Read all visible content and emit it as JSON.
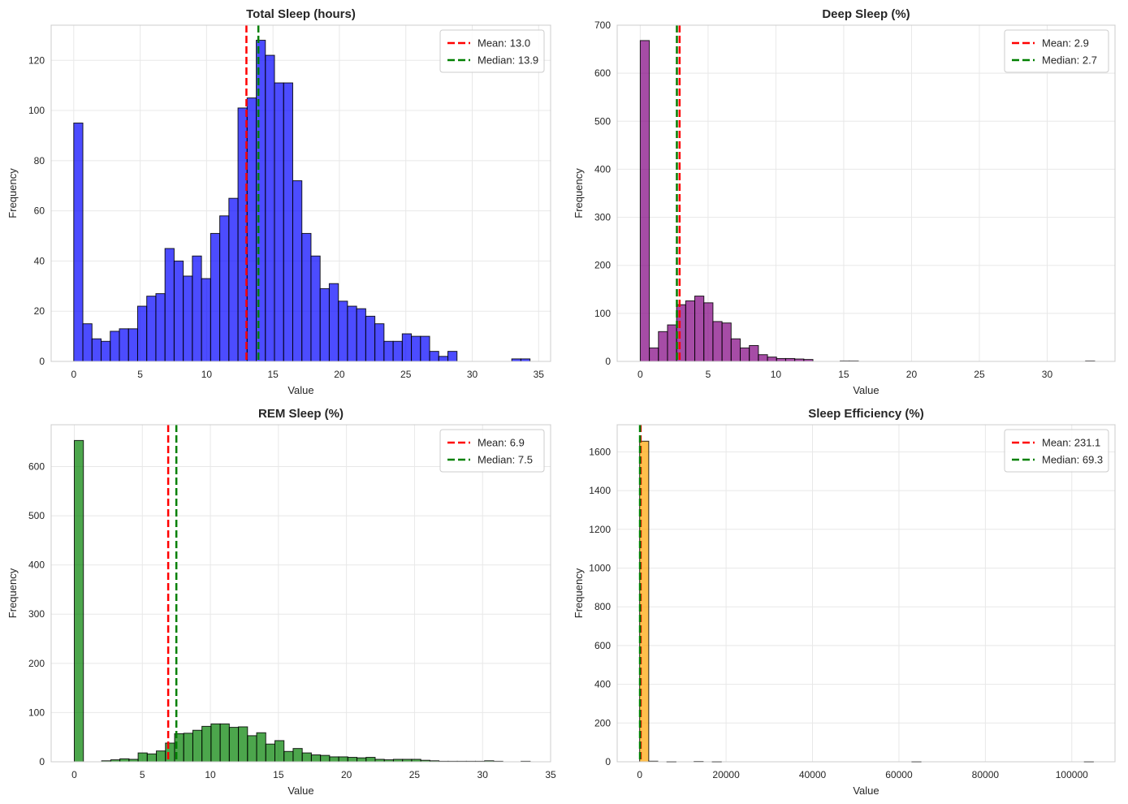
{
  "chart_data": [
    {
      "type": "bar",
      "title": "Total Sleep (hours)",
      "xlabel": "Value",
      "ylabel": "Frequency",
      "xlim": [
        -1.7,
        35.9
      ],
      "ylim": [
        0,
        134
      ],
      "xticks": [
        0,
        5,
        10,
        15,
        20,
        25,
        30,
        35
      ],
      "yticks": [
        0,
        20,
        40,
        60,
        80,
        100,
        120
      ],
      "bin_start": 0,
      "bin_width": 0.687,
      "color": "#0000ff",
      "values": [
        95,
        15,
        9,
        8,
        12,
        13,
        13,
        22,
        26,
        27,
        45,
        40,
        34,
        42,
        33,
        51,
        58,
        65,
        101,
        105,
        128,
        122,
        111,
        111,
        72,
        51,
        42,
        29,
        31,
        24,
        22,
        21,
        18,
        15,
        8,
        8,
        11,
        10,
        10,
        4,
        2,
        4,
        0,
        0,
        0,
        0,
        0,
        0,
        1,
        1
      ],
      "mean": 13.0,
      "median": 13.9,
      "legend": [
        "Mean: 13.0",
        "Median: 13.9"
      ]
    },
    {
      "type": "bar",
      "title": "Deep Sleep (%)",
      "xlabel": "Value",
      "ylabel": "Frequency",
      "xlim": [
        -1.7,
        35.0
      ],
      "ylim": [
        0,
        700
      ],
      "xticks": [
        0,
        5,
        10,
        15,
        20,
        25,
        30
      ],
      "yticks": [
        0,
        100,
        200,
        300,
        400,
        500,
        600,
        700
      ],
      "bin_start": 0,
      "bin_width": 0.67,
      "color": "#800080",
      "values": [
        668,
        28,
        62,
        76,
        118,
        126,
        136,
        122,
        83,
        80,
        47,
        28,
        33,
        14,
        9,
        6,
        6,
        5,
        4,
        0,
        0,
        0,
        1,
        1,
        0,
        0,
        0,
        0,
        0,
        0,
        0,
        0,
        0,
        0,
        0,
        0,
        0,
        0,
        0,
        0,
        0,
        0,
        0,
        0,
        0,
        0,
        0,
        0,
        0,
        1
      ],
      "mean": 2.9,
      "median": 2.7,
      "legend": [
        "Mean: 2.9",
        "Median: 2.7"
      ]
    },
    {
      "type": "bar",
      "title": "REM Sleep (%)",
      "xlabel": "Value",
      "ylabel": "Frequency",
      "xlim": [
        -1.7,
        35.0
      ],
      "ylim": [
        0,
        685
      ],
      "xticks": [
        0,
        5,
        10,
        15,
        20,
        25,
        30,
        35
      ],
      "yticks": [
        0,
        100,
        200,
        300,
        400,
        500,
        600
      ],
      "bin_start": 0,
      "bin_width": 0.67,
      "color": "#008000",
      "values": [
        653,
        0,
        0,
        2,
        4,
        6,
        5,
        18,
        16,
        22,
        38,
        57,
        58,
        64,
        72,
        77,
        77,
        70,
        71,
        53,
        59,
        36,
        43,
        21,
        27,
        18,
        14,
        13,
        10,
        10,
        9,
        8,
        9,
        5,
        4,
        5,
        5,
        5,
        3,
        2,
        1,
        1,
        1,
        1,
        1,
        2,
        1,
        0,
        0,
        1
      ],
      "mean": 6.9,
      "median": 7.5,
      "legend": [
        "Mean: 6.9",
        "Median: 7.5"
      ]
    },
    {
      "type": "bar",
      "title": "Sleep Efficiency (%)",
      "xlabel": "Value",
      "ylabel": "Frequency",
      "xlim": [
        -5200,
        110000
      ],
      "ylim": [
        0,
        1740
      ],
      "xticks": [
        0,
        20000,
        40000,
        60000,
        80000,
        100000
      ],
      "yticks": [
        0,
        200,
        400,
        600,
        800,
        1000,
        1200,
        1400,
        1600
      ],
      "bin_start": 0,
      "bin_width": 2100,
      "color": "#ffa500",
      "values": [
        1655,
        3,
        0,
        1,
        0,
        0,
        2,
        0,
        1,
        0,
        0,
        0,
        0,
        0,
        0,
        0,
        0,
        0,
        0,
        0,
        0,
        0,
        0,
        0,
        0,
        0,
        0,
        0,
        0,
        0,
        1,
        0,
        0,
        0,
        0,
        0,
        0,
        0,
        0,
        0,
        0,
        0,
        0,
        0,
        0,
        0,
        0,
        0,
        0,
        1
      ],
      "mean": 231.1,
      "median": 69.3,
      "legend": [
        "Mean: 231.1",
        "Median: 69.3"
      ]
    }
  ]
}
